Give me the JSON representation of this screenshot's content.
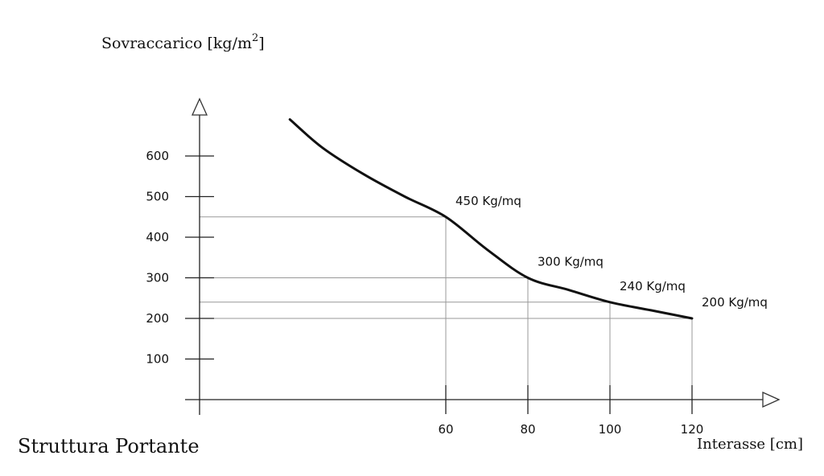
{
  "footer_title": "Struttura Portante",
  "chart_data": {
    "type": "line",
    "ylabel_text": "Sovraccarico [kg/m",
    "ylabel_superscript": "2",
    "ylabel_close": "]",
    "xlabel": "Interasse [cm]",
    "y_ticks": [
      100,
      200,
      300,
      400,
      500,
      600
    ],
    "x_ticks": [
      60,
      80,
      100,
      120
    ],
    "ylim": [
      0,
      700
    ],
    "xlim": [
      0,
      140
    ],
    "series": [
      {
        "x": [
          22,
          30,
          40,
          50,
          60,
          70,
          80,
          90,
          100,
          110,
          120
        ],
        "y": [
          690,
          620,
          555,
          500,
          450,
          370,
          300,
          270,
          240,
          220,
          200
        ]
      }
    ],
    "annotations": [
      {
        "x": 60,
        "y": 450,
        "text": "450 Kg/mq"
      },
      {
        "x": 80,
        "y": 300,
        "text": "300 Kg/mq"
      },
      {
        "x": 100,
        "y": 240,
        "text": "240 Kg/mq"
      },
      {
        "x": 120,
        "y": 200,
        "text": "200 Kg/mq"
      }
    ],
    "grid": false
  }
}
